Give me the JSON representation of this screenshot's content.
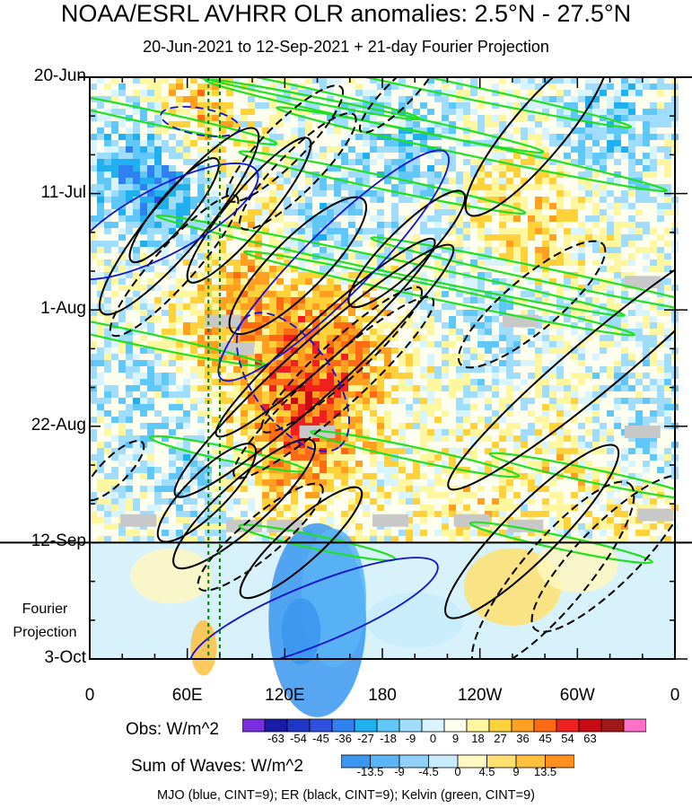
{
  "chart_data": {
    "type": "heatmap",
    "title": "NOAA/ESRL AVHRR OLR anomalies: 2.5°N - 27.5°N",
    "subtitle": "20-Jun-2021 to 12-Sep-2021 + 21-day Fourier Projection",
    "y_axis": {
      "labels": [
        "20-Jun",
        "11-Jul",
        "1-Aug",
        "22-Aug",
        "12-Sep",
        "3-Oct"
      ],
      "range": [
        "20-Jun-2021",
        "3-Oct-2021"
      ],
      "projection_start": "12-Sep-2021",
      "projection_label": [
        "Fourier",
        "Projection"
      ]
    },
    "x_axis": {
      "labels": [
        "0",
        "60E",
        "120E",
        "180",
        "120W",
        "60W",
        "0"
      ],
      "range_deg_east": [
        0,
        360
      ]
    },
    "obs_colorbar": {
      "title": "Obs: W/m^2",
      "ticks": [
        "-63",
        "-54",
        "-45",
        "-36",
        "-27",
        "-18",
        "-9",
        "0",
        "9",
        "18",
        "27",
        "36",
        "45",
        "54",
        "63"
      ],
      "colors": [
        "#7b2ee0",
        "#1a1aa8",
        "#1f37c8",
        "#3050e0",
        "#2f80f0",
        "#20b0f0",
        "#60c8f8",
        "#a0dcfc",
        "#d8f4ff",
        "#fffff0",
        "#fff6a0",
        "#ffd23c",
        "#ffa020",
        "#ff6a14",
        "#f02020",
        "#c80c14",
        "#a01818",
        "#ff70c8"
      ]
    },
    "waves_colorbar": {
      "title": "Sum of Waves: W/m^2",
      "ticks": [
        "-13.5",
        "-9",
        "-4.5",
        "0",
        "4.5",
        "9",
        "13.5"
      ],
      "colors": [
        "#3a96f0",
        "#5ab4f6",
        "#90d0fa",
        "#c8ecfe",
        "#fff8c0",
        "#ffe070",
        "#ffc040",
        "#ff9020"
      ]
    },
    "footer": "MJO (blue, CINT=9); ER (black, CINT=9); Kelvin (green, CINT=9)",
    "wave_colors": {
      "mjo": "#1010d0",
      "er": "#000000",
      "kelvin": "#20e020"
    },
    "reference_lines_lon": [
      73,
      80
    ],
    "features": {
      "er_ellipses": [
        {
          "lon": 55,
          "date": "2021-07-16",
          "len": 18,
          "w": 4,
          "ang": -50,
          "dashed": false
        },
        {
          "lon": 52,
          "date": "2021-07-14",
          "len": 10,
          "w": 2.5,
          "ang": -50,
          "dashed": false
        },
        {
          "lon": 52,
          "date": "2021-07-24",
          "len": 14,
          "w": 3,
          "ang": -48,
          "dashed": true
        },
        {
          "lon": 98,
          "date": "2021-07-14",
          "len": 14,
          "w": 3,
          "ang": -50,
          "dashed": false
        },
        {
          "lon": 120,
          "date": "2021-07-02",
          "len": 12,
          "w": 3,
          "ang": -45,
          "dashed": true
        },
        {
          "lon": 128,
          "date": "2021-07-07",
          "len": 12,
          "w": 3,
          "ang": -45,
          "dashed": true
        },
        {
          "lon": 128,
          "date": "2021-07-24",
          "len": 14,
          "w": 4,
          "ang": -45,
          "dashed": false
        },
        {
          "lon": 138,
          "date": "2021-08-12",
          "len": 28,
          "w": 4,
          "ang": -42,
          "dashed": false
        },
        {
          "lon": 145,
          "date": "2021-08-06",
          "len": 22,
          "w": 3,
          "ang": -42,
          "dashed": false
        },
        {
          "lon": 150,
          "date": "2021-08-15",
          "len": 20,
          "w": 3.5,
          "ang": -42,
          "dashed": true
        },
        {
          "lon": 155,
          "date": "2021-08-10",
          "len": 16,
          "w": 3,
          "ang": -42,
          "dashed": true
        },
        {
          "lon": 190,
          "date": "2021-06-23",
          "len": 8,
          "w": 2,
          "ang": -45,
          "dashed": true
        },
        {
          "lon": 275,
          "date": "2021-06-30",
          "len": 16,
          "w": 4,
          "ang": -50,
          "dashed": false
        },
        {
          "lon": 272,
          "date": "2021-07-31",
          "len": 14,
          "w": 4,
          "ang": -40,
          "dashed": true
        },
        {
          "lon": 315,
          "date": "2021-08-10",
          "len": 30,
          "w": 4,
          "ang": -40,
          "dashed": false
        },
        {
          "lon": 72,
          "date": "2021-09-03",
          "len": 10,
          "w": 3,
          "ang": -45,
          "dashed": false
        },
        {
          "lon": 95,
          "date": "2021-09-05",
          "len": 14,
          "w": 3.5,
          "ang": -42,
          "dashed": false
        },
        {
          "lon": 105,
          "date": "2021-09-11",
          "len": 12,
          "w": 3,
          "ang": -40,
          "dashed": true
        },
        {
          "lon": 130,
          "date": "2021-09-12",
          "len": 12,
          "w": 3,
          "ang": -42,
          "dashed": false
        },
        {
          "lon": 285,
          "date": "2021-09-18",
          "len": 18,
          "w": 5,
          "ang": -50,
          "dashed": true
        },
        {
          "lon": 320,
          "date": "2021-09-14",
          "len": 16,
          "w": 4.5,
          "ang": -45,
          "dashed": true
        },
        {
          "lon": 272,
          "date": "2021-09-10",
          "len": 18,
          "w": 4,
          "ang": -45,
          "dashed": false
        },
        {
          "lon": 15,
          "date": "2021-08-30",
          "len": 6,
          "w": 2,
          "ang": -45,
          "dashed": true
        },
        {
          "lon": 195,
          "date": "2021-07-21",
          "len": 12,
          "w": 3,
          "ang": -45,
          "dashed": false
        }
      ],
      "mjo_ellipses": [
        {
          "lon": 45,
          "date": "2021-07-16",
          "len": 16,
          "w": 5,
          "ang": -28,
          "dashed": false
        },
        {
          "lon": 68,
          "date": "2021-06-28",
          "len": 6,
          "w": 2,
          "ang": 10,
          "dashed": true
        },
        {
          "lon": 150,
          "date": "2021-07-24",
          "len": 24,
          "w": 5,
          "ang": -45,
          "dashed": false
        },
        {
          "lon": 125,
          "date": "2021-08-14",
          "len": 12,
          "w": 6,
          "ang": 55,
          "dashed": true
        },
        {
          "lon": 138,
          "date": "2021-09-25",
          "len": 20,
          "w": 4.5,
          "ang": -22,
          "dashed": false
        }
      ],
      "kelvin_bands": [
        {
          "lon": 35,
          "date": "2021-06-27",
          "len": 20,
          "w": 1,
          "ang": 12
        },
        {
          "lon": 115,
          "date": "2021-06-22",
          "len": 22,
          "w": 1,
          "ang": 12
        },
        {
          "lon": 175,
          "date": "2021-06-27",
          "len": 26,
          "w": 1,
          "ang": 12
        },
        {
          "lon": 205,
          "date": "2021-06-21",
          "len": 32,
          "w": 1,
          "ang": 12
        },
        {
          "lon": 235,
          "date": "2021-07-03",
          "len": 30,
          "w": 1,
          "ang": 12
        },
        {
          "lon": 180,
          "date": "2021-07-09",
          "len": 22,
          "w": 1,
          "ang": 12
        },
        {
          "lon": 185,
          "date": "2021-07-24",
          "len": 36,
          "w": 1,
          "ang": 12
        },
        {
          "lon": 215,
          "date": "2021-07-29",
          "len": 30,
          "w": 1,
          "ang": 12
        },
        {
          "lon": 285,
          "date": "2021-07-26",
          "len": 28,
          "w": 1,
          "ang": 12
        },
        {
          "lon": 28,
          "date": "2021-08-06",
          "len": 20,
          "w": 1,
          "ang": 12
        },
        {
          "lon": 85,
          "date": "2021-08-27",
          "len": 12,
          "w": 1,
          "ang": 12
        },
        {
          "lon": 200,
          "date": "2021-08-27",
          "len": 16,
          "w": 1,
          "ang": 12
        },
        {
          "lon": 310,
          "date": "2021-08-31",
          "len": 16,
          "w": 1,
          "ang": 12
        },
        {
          "lon": 140,
          "date": "2021-09-12",
          "len": 12,
          "w": 1,
          "ang": 12
        },
        {
          "lon": 290,
          "date": "2021-09-12",
          "len": 14,
          "w": 1,
          "ang": 12
        }
      ],
      "missing_data_boxes": [
        {
          "lon": 82,
          "date": "2021-08-03"
        },
        {
          "lon": 90,
          "date": "2021-08-08"
        },
        {
          "lon": 140,
          "date": "2021-08-23"
        },
        {
          "lon": 30,
          "date": "2021-09-08"
        },
        {
          "lon": 95,
          "date": "2021-09-09"
        },
        {
          "lon": 120,
          "date": "2021-09-09"
        },
        {
          "lon": 185,
          "date": "2021-09-08"
        },
        {
          "lon": 235,
          "date": "2021-09-08"
        },
        {
          "lon": 268,
          "date": "2021-09-09"
        },
        {
          "lon": 265,
          "date": "2021-08-03"
        },
        {
          "lon": 340,
          "date": "2021-08-23"
        },
        {
          "lon": 348,
          "date": "2021-09-07"
        },
        {
          "lon": 340,
          "date": "2021-07-27"
        }
      ]
    }
  }
}
